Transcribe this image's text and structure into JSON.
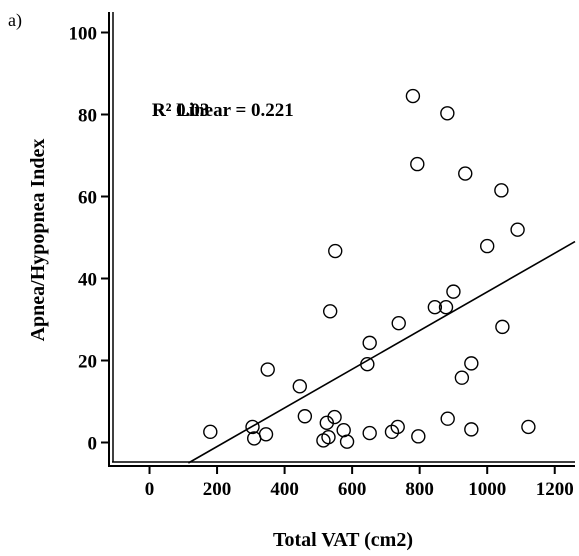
{
  "panel_label": "a)",
  "chart_data": {
    "type": "scatter",
    "title": "",
    "xlabel": "Total VAT (cm2)",
    "ylabel": "Apnea/Hypopnea Index",
    "xlim": [
      -120,
      1260
    ],
    "ylim": [
      -5,
      105
    ],
    "xticks": [
      0,
      200,
      400,
      600,
      800,
      1000,
      1200
    ],
    "yticks": [
      0,
      20,
      40,
      60,
      80,
      100
    ],
    "xtick_labels": [
      "0",
      "200",
      "400",
      "600",
      "800",
      "1000",
      "1200"
    ],
    "ytick_labels": [
      "0",
      "20",
      "40",
      "60",
      "80",
      "100"
    ],
    "grid": false,
    "legend": "none",
    "annotation": "R² Linear = 0.221",
    "annotation_overlap": "R² 0.03",
    "fit_line": {
      "x": [
        115,
        1260
      ],
      "y": [
        -5,
        49
      ]
    },
    "points": [
      {
        "x": 180,
        "y": 2.6
      },
      {
        "x": 305,
        "y": 3.8
      },
      {
        "x": 310,
        "y": 1.0
      },
      {
        "x": 345,
        "y": 2.0
      },
      {
        "x": 350,
        "y": 17.8
      },
      {
        "x": 445,
        "y": 13.7
      },
      {
        "x": 460,
        "y": 6.4
      },
      {
        "x": 515,
        "y": 0.5
      },
      {
        "x": 525,
        "y": 4.8
      },
      {
        "x": 530,
        "y": 1.3
      },
      {
        "x": 535,
        "y": 32.0
      },
      {
        "x": 548,
        "y": 6.2
      },
      {
        "x": 550,
        "y": 46.7
      },
      {
        "x": 575,
        "y": 3.0
      },
      {
        "x": 585,
        "y": 0.2
      },
      {
        "x": 645,
        "y": 19.1
      },
      {
        "x": 652,
        "y": 24.3
      },
      {
        "x": 652,
        "y": 2.3
      },
      {
        "x": 718,
        "y": 2.6
      },
      {
        "x": 735,
        "y": 3.8
      },
      {
        "x": 738,
        "y": 29.1
      },
      {
        "x": 780,
        "y": 84.5
      },
      {
        "x": 793,
        "y": 67.9
      },
      {
        "x": 796,
        "y": 1.5
      },
      {
        "x": 845,
        "y": 33.0
      },
      {
        "x": 878,
        "y": 33.0
      },
      {
        "x": 882,
        "y": 80.3
      },
      {
        "x": 883,
        "y": 5.8
      },
      {
        "x": 900,
        "y": 36.8
      },
      {
        "x": 925,
        "y": 15.8
      },
      {
        "x": 935,
        "y": 65.6
      },
      {
        "x": 953,
        "y": 19.3
      },
      {
        "x": 953,
        "y": 3.2
      },
      {
        "x": 1000,
        "y": 47.9
      },
      {
        "x": 1042,
        "y": 61.5
      },
      {
        "x": 1045,
        "y": 28.2
      },
      {
        "x": 1090,
        "y": 51.9
      },
      {
        "x": 1122,
        "y": 3.8
      }
    ]
  }
}
